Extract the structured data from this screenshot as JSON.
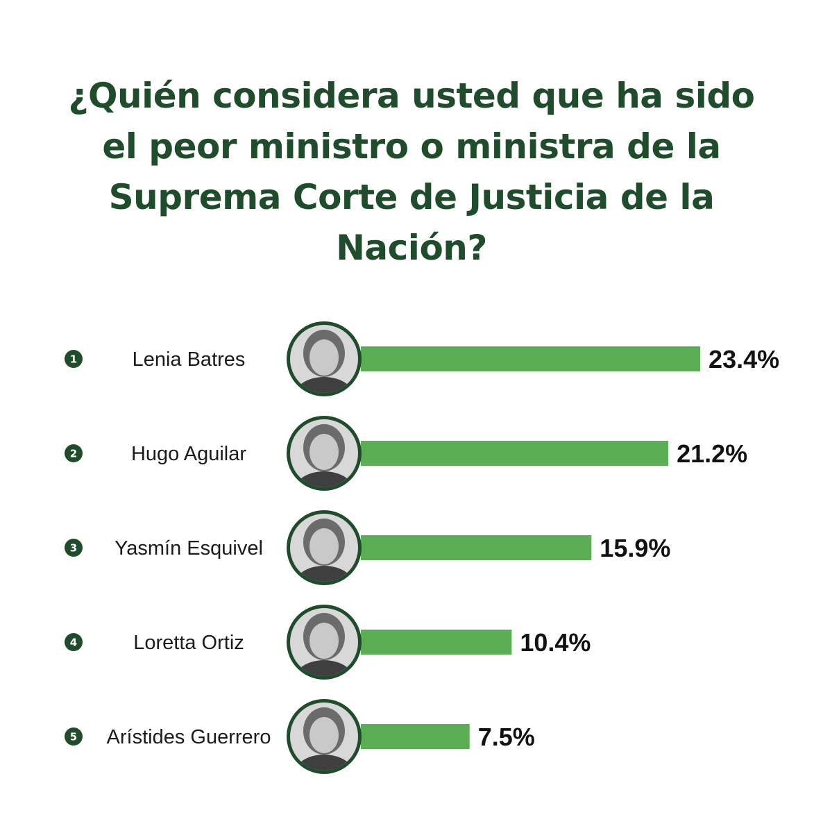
{
  "colors": {
    "title": "#1f4d2c",
    "bar": "#5cae55",
    "rank_badge": "#1f4d2c",
    "avatar_ring": "#1f4d2c",
    "avatar_fill": "#9a9a9a",
    "avatar_shade": "#6b6b6b"
  },
  "chart_data": {
    "type": "bar",
    "orientation": "horizontal",
    "title": "¿Quién considera usted que ha sido el peor ministro o ministra de la Suprema Corte de Justicia de la Nación?",
    "categories": [
      "Lenia Batres",
      "Hugo Aguilar",
      "Yasmín Esquivel",
      "Loretta Ortiz",
      "Arístides Guerrero"
    ],
    "ranks": [
      "1",
      "2",
      "3",
      "4",
      "5"
    ],
    "values": [
      23.4,
      21.2,
      15.9,
      10.4,
      7.5
    ],
    "value_labels": [
      "23.4%",
      "21.2%",
      "15.9%",
      "10.4%",
      "7.5%"
    ],
    "unit": "%",
    "grid": false,
    "legend": "none",
    "avatars": [
      "portrait-woman-glasses-icon",
      "portrait-man-smiling-icon",
      "portrait-woman-blonde-icon",
      "portrait-woman-blonde-icon",
      "portrait-man-suit-icon"
    ]
  }
}
